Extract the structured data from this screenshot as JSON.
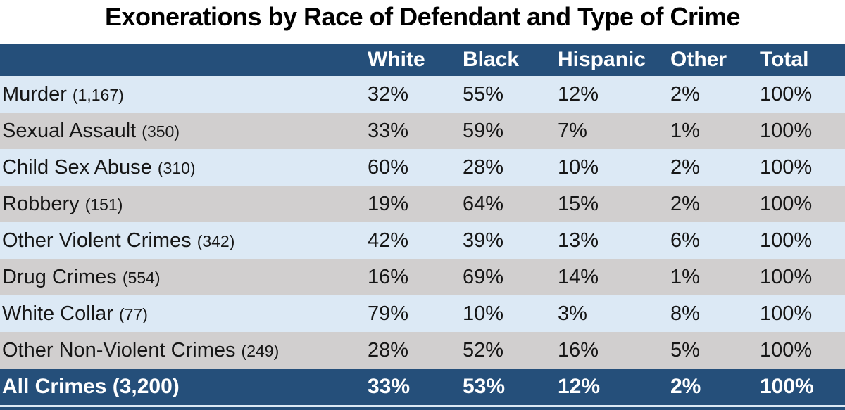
{
  "title": "Exonerations by Race of Defendant and Type of Crime",
  "colors": {
    "header_bg": "#254f7a",
    "total_row_bg": "#254f7a",
    "row_light_blue": "#dce9f5",
    "row_gray": "#d1cfcf",
    "header_text": "#ffffff",
    "body_text": "#161616"
  },
  "table": {
    "header": {
      "label": "",
      "white": "White",
      "black": "Black",
      "hispanic": "Hispanic",
      "other": "Other",
      "total": "Total"
    },
    "rows": [
      {
        "crime": "Murder",
        "count": "(1,167)",
        "white": "32%",
        "black": "55%",
        "hispanic": "12%",
        "other": "2%",
        "total": "100%"
      },
      {
        "crime": "Sexual Assault",
        "count": "(350)",
        "white": "33%",
        "black": "59%",
        "hispanic": "7%",
        "other": "1%",
        "total": "100%"
      },
      {
        "crime": "Child Sex Abuse",
        "count": "(310)",
        "white": "60%",
        "black": "28%",
        "hispanic": "10%",
        "other": "2%",
        "total": "100%"
      },
      {
        "crime": "Robbery",
        "count": "(151)",
        "white": "19%",
        "black": "64%",
        "hispanic": "15%",
        "other": "2%",
        "total": "100%"
      },
      {
        "crime": "Other Violent Crimes",
        "count": "(342)",
        "white": "42%",
        "black": "39%",
        "hispanic": "13%",
        "other": "6%",
        "total": "100%"
      },
      {
        "crime": "Drug Crimes",
        "count": "(554)",
        "white": "16%",
        "black": "69%",
        "hispanic": "14%",
        "other": "1%",
        "total": "100%"
      },
      {
        "crime": "White Collar",
        "count": "(77)",
        "white": "79%",
        "black": "10%",
        "hispanic": "3%",
        "other": "8%",
        "total": "100%"
      },
      {
        "crime": "Other Non-Violent Crimes",
        "count": "(249)",
        "white": "28%",
        "black": "52%",
        "hispanic": "16%",
        "other": "5%",
        "total": "100%"
      }
    ],
    "total_row": {
      "crime": "All Crimes",
      "count": "(3,200)",
      "white": "33%",
      "black": "53%",
      "hispanic": "12%",
      "other": "2%",
      "total": "100%"
    }
  },
  "chart_data": {
    "type": "table",
    "title": "Exonerations by Race of Defendant and Type of Crime",
    "columns": [
      "White",
      "Black",
      "Hispanic",
      "Other",
      "Total"
    ],
    "unit": "percent of exonerations within crime type",
    "rows": [
      {
        "label": "Murder",
        "n": 1167,
        "values_pct": [
          32,
          55,
          12,
          2,
          100
        ]
      },
      {
        "label": "Sexual Assault",
        "n": 350,
        "values_pct": [
          33,
          59,
          7,
          1,
          100
        ]
      },
      {
        "label": "Child Sex Abuse",
        "n": 310,
        "values_pct": [
          60,
          28,
          10,
          2,
          100
        ]
      },
      {
        "label": "Robbery",
        "n": 151,
        "values_pct": [
          19,
          64,
          15,
          2,
          100
        ]
      },
      {
        "label": "Other Violent Crimes",
        "n": 342,
        "values_pct": [
          42,
          39,
          13,
          6,
          100
        ]
      },
      {
        "label": "Drug Crimes",
        "n": 554,
        "values_pct": [
          16,
          69,
          14,
          1,
          100
        ]
      },
      {
        "label": "White Collar",
        "n": 77,
        "values_pct": [
          79,
          10,
          3,
          8,
          100
        ]
      },
      {
        "label": "Other Non-Violent Crimes",
        "n": 249,
        "values_pct": [
          28,
          52,
          16,
          5,
          100
        ]
      },
      {
        "label": "All Crimes",
        "n": 3200,
        "values_pct": [
          33,
          53,
          12,
          2,
          100
        ]
      }
    ],
    "layout": {
      "row_striping": [
        "light_blue",
        "gray"
      ],
      "header_style": "navy_bg_white_bold",
      "total_row_style": "navy_bg_white_bold"
    }
  }
}
